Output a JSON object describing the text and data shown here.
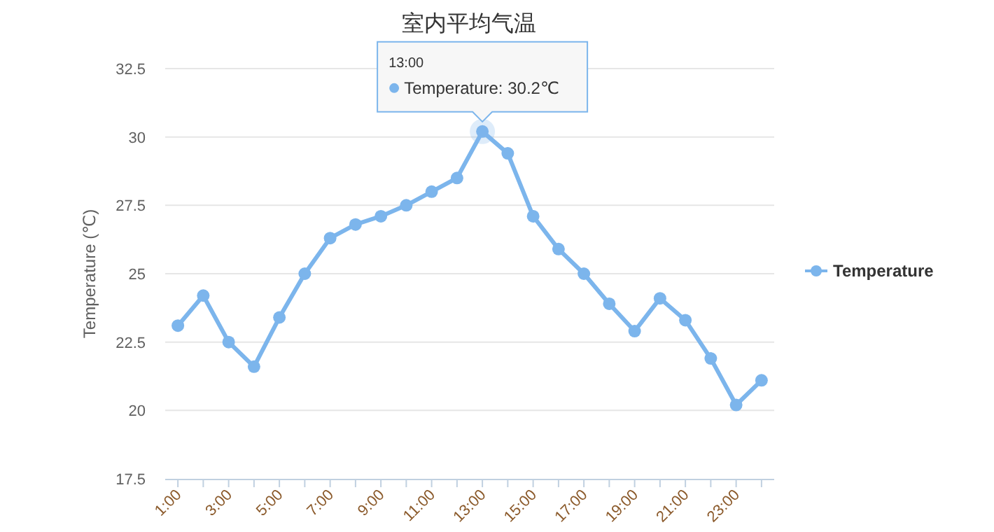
{
  "chart_data": {
    "type": "line",
    "title": "室内平均气温",
    "ylabel": "Temperature (℃)",
    "categories": [
      "1:00",
      null,
      "3:00",
      null,
      "5:00",
      null,
      "7:00",
      null,
      "9:00",
      null,
      "11:00",
      null,
      "13:00",
      null,
      "15:00",
      null,
      "17:00",
      null,
      "19:00",
      null,
      "21:00",
      null,
      "23:00",
      null
    ],
    "series": [
      {
        "name": "Temperature",
        "color": "#7cb5ec",
        "values": [
          23.1,
          24.2,
          22.5,
          21.6,
          23.4,
          25.0,
          26.3,
          26.8,
          27.1,
          27.5,
          28.0,
          28.5,
          30.2,
          29.4,
          27.1,
          25.9,
          25.0,
          23.9,
          22.9,
          24.1,
          23.3,
          21.9,
          20.2,
          21.1
        ]
      }
    ],
    "ylim": [
      17.5,
      32.5
    ],
    "yticks": [
      17.5,
      20,
      22.5,
      25,
      27.5,
      30,
      32.5
    ],
    "grid": "y",
    "legend": "right",
    "marker": "circle",
    "line_style": "solid",
    "annotations": [
      "13:00",
      "Temperature: 30.2℃"
    ]
  }
}
